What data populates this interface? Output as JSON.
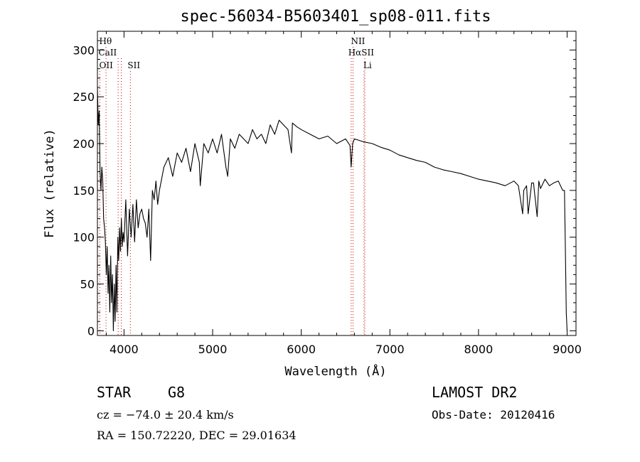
{
  "chart_data": {
    "type": "line",
    "title": "spec-56034-B5603401_sp08-011.fits",
    "xlabel": "Wavelength (Å)",
    "ylabel": "Flux (relative)",
    "xlim": [
      3700,
      9100
    ],
    "ylim": [
      -5,
      320
    ],
    "xticks": [
      4000,
      5000,
      6000,
      7000,
      8000,
      9000
    ],
    "yticks": [
      0,
      50,
      100,
      150,
      200,
      250,
      300
    ],
    "grid": false,
    "series": [
      {
        "color": "#000000",
        "x": [
          3700,
          3710,
          3720,
          3730,
          3740,
          3750,
          3760,
          3770,
          3780,
          3790,
          3800,
          3810,
          3820,
          3830,
          3840,
          3850,
          3860,
          3870,
          3880,
          3890,
          3900,
          3910,
          3920,
          3930,
          3940,
          3950,
          3960,
          3970,
          3980,
          3990,
          4000,
          4020,
          4040,
          4060,
          4080,
          4100,
          4120,
          4140,
          4160,
          4180,
          4200,
          4220,
          4240,
          4260,
          4280,
          4300,
          4320,
          4340,
          4360,
          4380,
          4400,
          4450,
          4500,
          4550,
          4600,
          4650,
          4700,
          4750,
          4800,
          4850,
          4860,
          4900,
          4950,
          5000,
          5050,
          5100,
          5150,
          5170,
          5200,
          5250,
          5300,
          5350,
          5400,
          5450,
          5500,
          5550,
          5600,
          5650,
          5700,
          5750,
          5800,
          5850,
          5890,
          5900,
          5950,
          6000,
          6100,
          6200,
          6300,
          6400,
          6500,
          6550,
          6563,
          6580,
          6600,
          6700,
          6800,
          6900,
          7000,
          7100,
          7200,
          7300,
          7400,
          7500,
          7600,
          7700,
          7800,
          7900,
          8000,
          8100,
          8200,
          8300,
          8400,
          8450,
          8498,
          8510,
          8542,
          8560,
          8600,
          8620,
          8662,
          8680,
          8700,
          8750,
          8800,
          8850,
          8900,
          8950,
          8970,
          8980,
          8990,
          9000
        ],
        "values": [
          260,
          220,
          235,
          170,
          150,
          175,
          160,
          120,
          110,
          95,
          60,
          90,
          40,
          70,
          20,
          80,
          30,
          60,
          0,
          50,
          10,
          70,
          20,
          100,
          75,
          110,
          85,
          120,
          90,
          105,
          95,
          140,
          80,
          130,
          100,
          135,
          95,
          140,
          110,
          125,
          130,
          120,
          115,
          100,
          130,
          75,
          150,
          140,
          160,
          135,
          150,
          175,
          185,
          165,
          190,
          180,
          195,
          170,
          200,
          180,
          155,
          200,
          190,
          205,
          190,
          210,
          175,
          165,
          205,
          195,
          210,
          205,
          200,
          215,
          205,
          210,
          200,
          220,
          210,
          225,
          220,
          215,
          190,
          222,
          218,
          215,
          210,
          205,
          208,
          200,
          205,
          198,
          175,
          200,
          205,
          202,
          200,
          196,
          193,
          188,
          185,
          182,
          180,
          175,
          172,
          170,
          168,
          165,
          162,
          160,
          158,
          155,
          160,
          155,
          125,
          150,
          155,
          125,
          158,
          158,
          122,
          160,
          152,
          162,
          155,
          158,
          160,
          150,
          150,
          90,
          20,
          0
        ]
      }
    ],
    "line_markers": [
      {
        "label": "Hθ",
        "x": 3797,
        "row": 0
      },
      {
        "label": "CaII",
        "x": 3934,
        "row": 1
      },
      {
        "label": "CaII",
        "x": 3969,
        "row": 1
      },
      {
        "label": "OII",
        "x": 3727,
        "row": 2
      },
      {
        "label": "SII",
        "x": 4072,
        "row": 2
      },
      {
        "label": "NII",
        "x": 6584,
        "row": 0
      },
      {
        "label": "Hα",
        "x": 6563,
        "row": 1
      },
      {
        "label": "SII",
        "x": 6717,
        "row": 1
      },
      {
        "label": "Li",
        "x": 6708,
        "row": 2
      }
    ],
    "marker_visible_labels": [
      {
        "text": "Hθ",
        "x": 3720,
        "row": 0
      },
      {
        "text": "CaII",
        "x": 3712,
        "row": 1
      },
      {
        "text": "OII",
        "x": 3720,
        "row": 2
      },
      {
        "text": "SII",
        "x": 4040,
        "row": 2
      },
      {
        "text": "NII",
        "x": 6560,
        "row": 0
      },
      {
        "text": "HαSII",
        "x": 6530,
        "row": 1
      },
      {
        "text": "Li",
        "x": 6700,
        "row": 2
      }
    ],
    "marker_color": "#cc0000"
  },
  "info": {
    "object_type": "STAR",
    "subclass": "G8",
    "survey": "LAMOST DR2",
    "cz": "cz = −74.0 ± 20.4 km/s",
    "obs_date": "Obs-Date: 20120416",
    "coords": "RA = 150.72220, DEC =  29.01634"
  }
}
